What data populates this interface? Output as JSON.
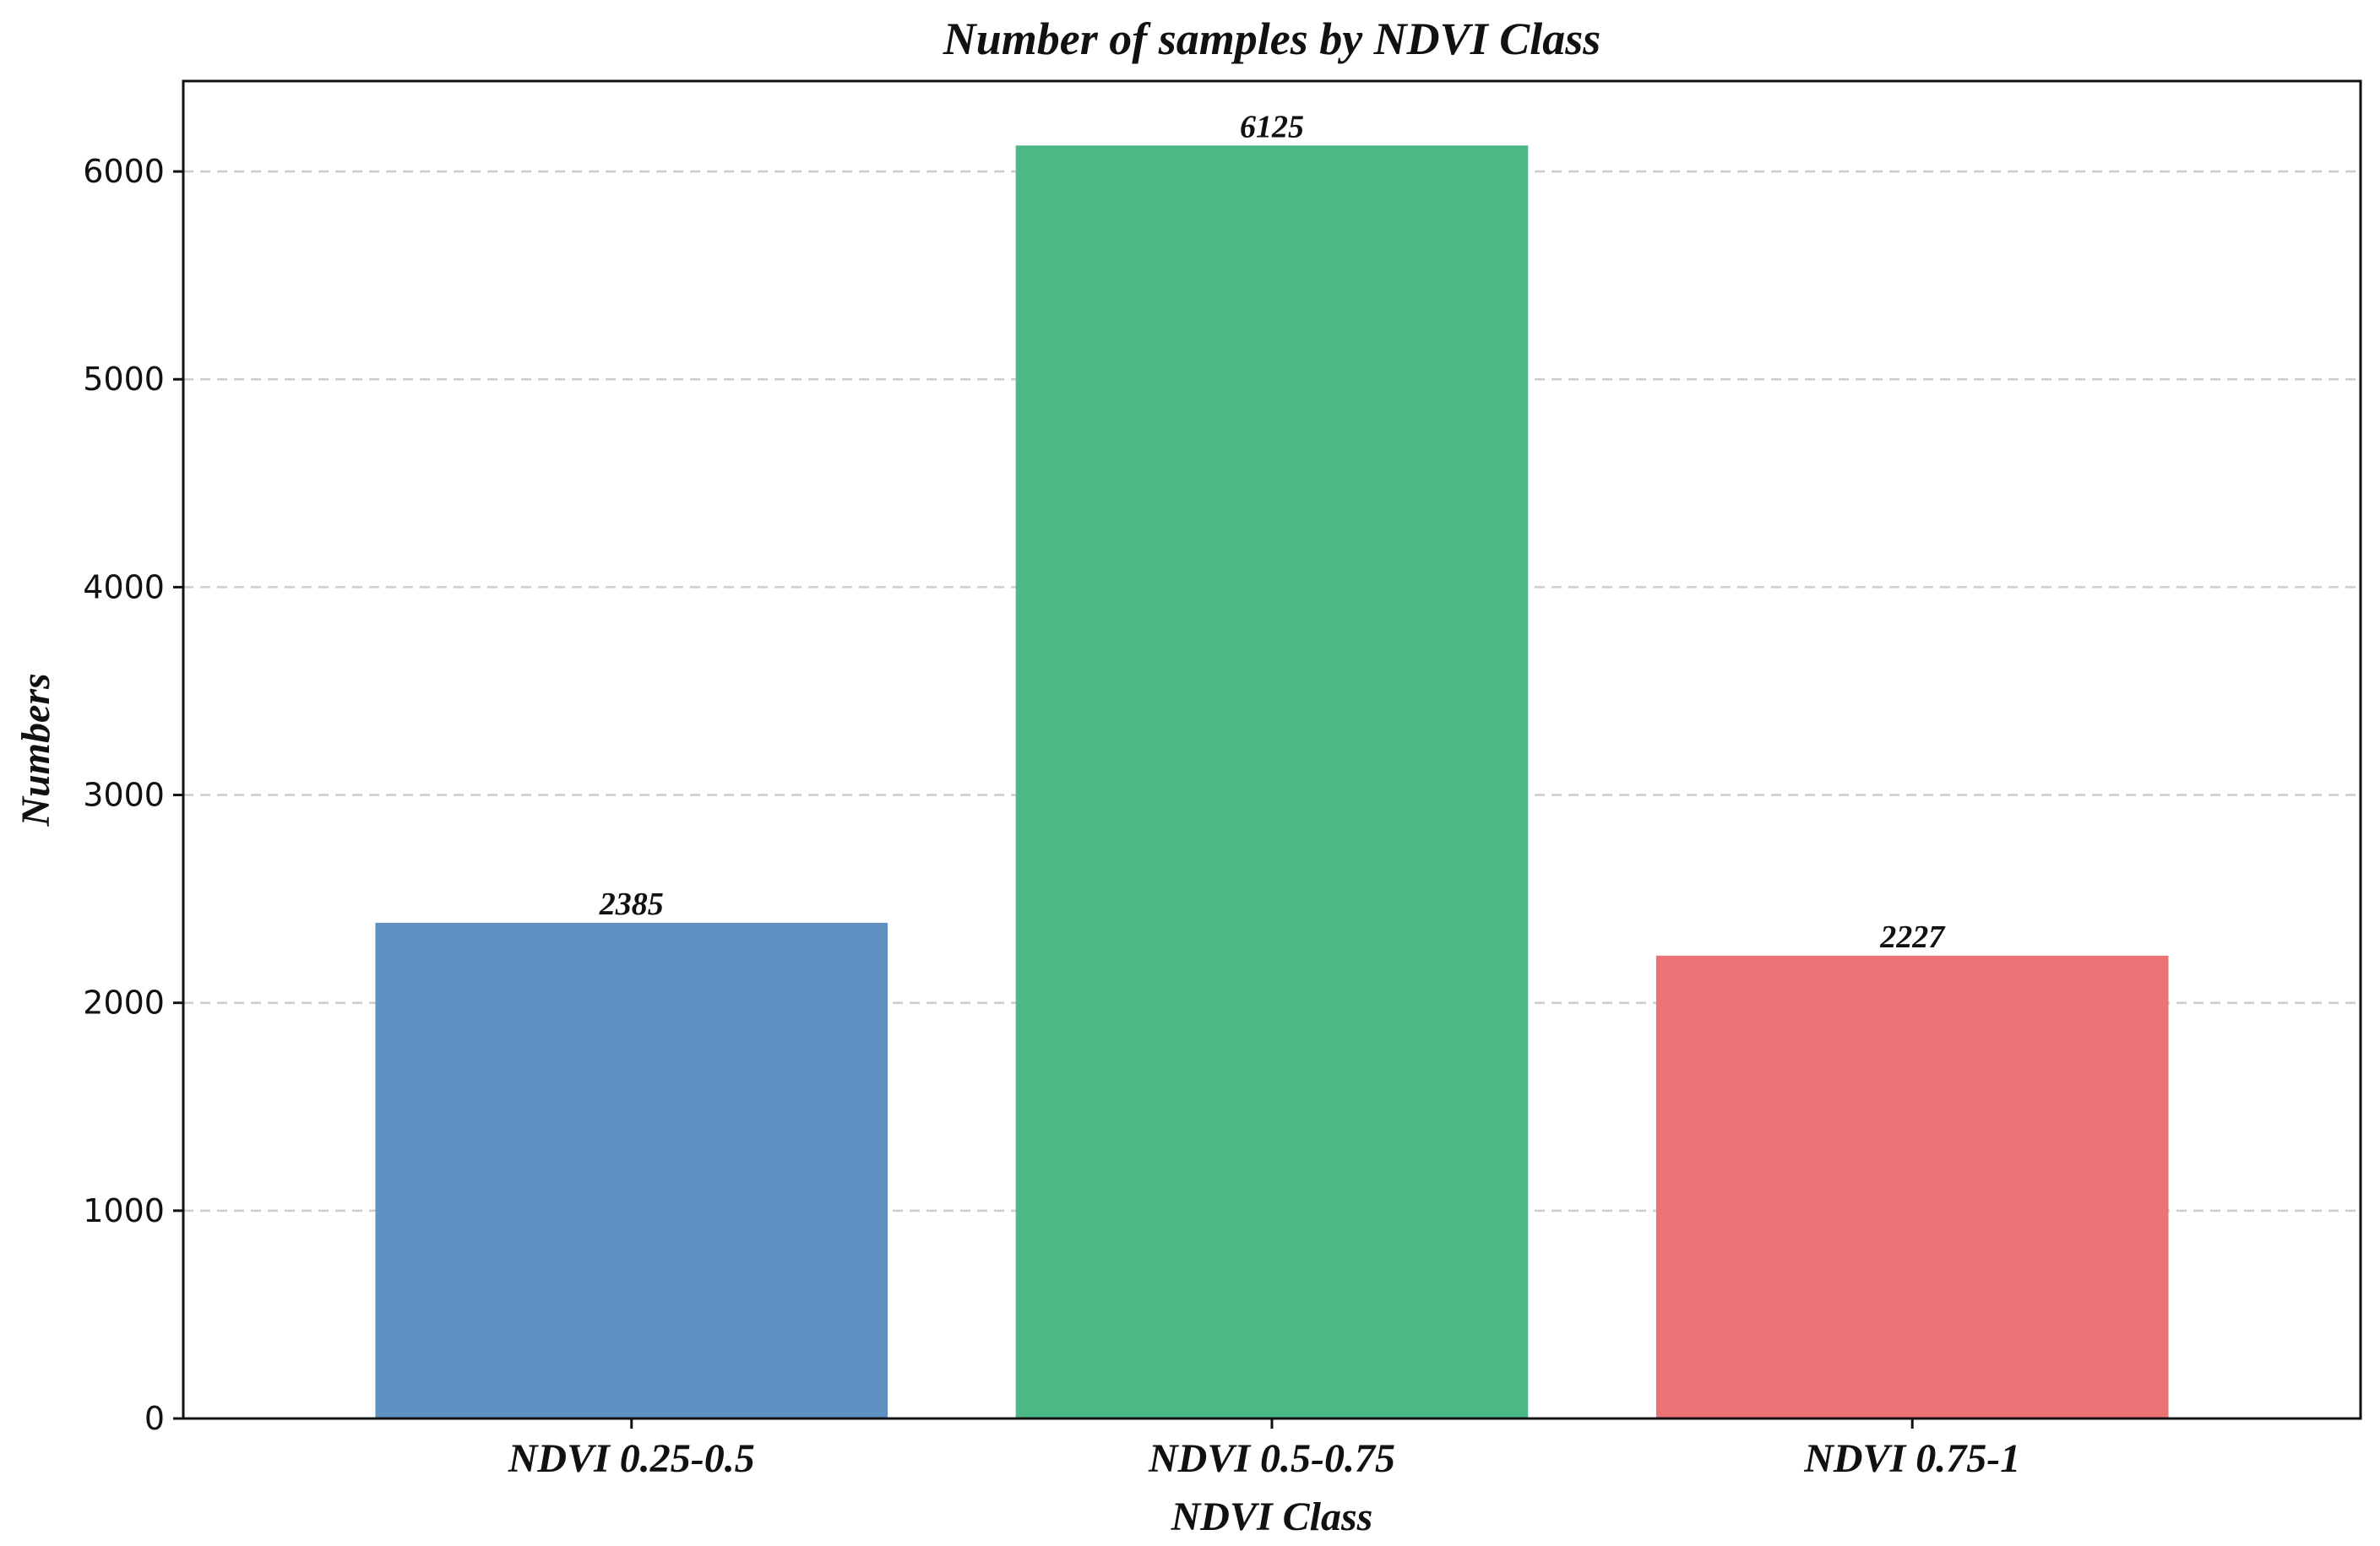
{
  "chart_data": {
    "type": "bar",
    "title": "Number of samples by NDVI Class",
    "xlabel": "NDVI Class",
    "ylabel": "Numbers",
    "categories": [
      "NDVI 0.25-0.5",
      "NDVI 0.5-0.75",
      "NDVI 0.75-1"
    ],
    "values": [
      2385,
      6125,
      2227
    ],
    "value_labels": [
      "2385",
      "6125",
      "2227"
    ],
    "colors": [
      "#6190c3",
      "#4ab985",
      "#eb7275"
    ],
    "ylim": [
      0,
      6435
    ],
    "yticks": [
      0,
      1000,
      2000,
      3000,
      4000,
      5000,
      6000
    ],
    "ytick_labels": [
      "0",
      "1000",
      "2000",
      "3000",
      "4000",
      "5000",
      "6000"
    ],
    "grid": "y-dashed",
    "legend": "none"
  }
}
